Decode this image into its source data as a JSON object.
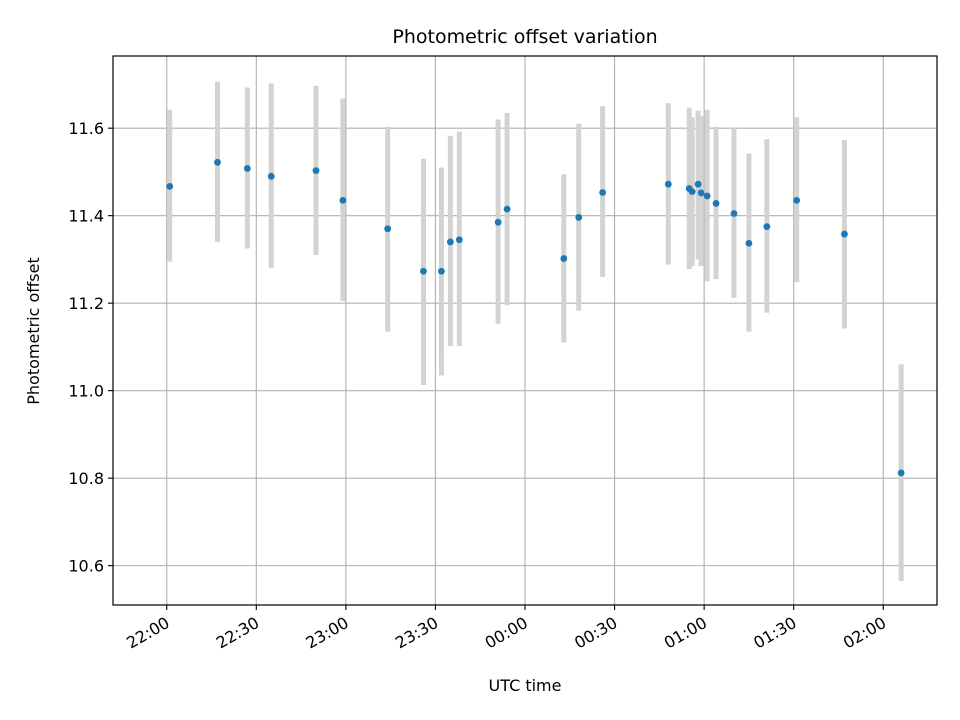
{
  "chart_data": {
    "type": "scatter",
    "title": "Photometric offset variation",
    "xlabel": "UTC time",
    "ylabel": "Photometric offset",
    "x_is_time": true,
    "xlim": [
      "21:42",
      "02:18"
    ],
    "ylim": [
      10.51,
      11.765
    ],
    "x_ticks": [
      "22:00",
      "22:30",
      "23:00",
      "23:30",
      "00:00",
      "00:30",
      "01:00",
      "01:30",
      "02:00"
    ],
    "y_ticks": [
      10.6,
      10.8,
      11.0,
      11.2,
      11.4,
      11.6
    ],
    "y_tick_labels": [
      "10.6",
      "10.8",
      "11.0",
      "11.2",
      "11.4",
      "11.6"
    ],
    "grid": true,
    "colors": {
      "point": "#1f77b4",
      "errorbar": "#d3d3d3",
      "grid": "#b0b0b0"
    },
    "points": [
      {
        "x": "22:01",
        "y": 11.467,
        "lo": 11.295,
        "hi": 11.642
      },
      {
        "x": "22:17",
        "y": 11.522,
        "lo": 11.34,
        "hi": 11.706
      },
      {
        "x": "22:27",
        "y": 11.508,
        "lo": 11.325,
        "hi": 11.693
      },
      {
        "x": "22:35",
        "y": 11.49,
        "lo": 11.28,
        "hi": 11.702
      },
      {
        "x": "22:50",
        "y": 11.503,
        "lo": 11.31,
        "hi": 11.697
      },
      {
        "x": "22:59",
        "y": 11.435,
        "lo": 11.205,
        "hi": 11.668
      },
      {
        "x": "23:14",
        "y": 11.37,
        "lo": 11.135,
        "hi": 11.603
      },
      {
        "x": "23:26",
        "y": 11.273,
        "lo": 11.013,
        "hi": 11.53
      },
      {
        "x": "23:32",
        "y": 11.273,
        "lo": 11.035,
        "hi": 11.51
      },
      {
        "x": "23:35",
        "y": 11.34,
        "lo": 11.102,
        "hi": 11.582
      },
      {
        "x": "23:38",
        "y": 11.345,
        "lo": 11.102,
        "hi": 11.592
      },
      {
        "x": "23:51",
        "y": 11.385,
        "lo": 11.153,
        "hi": 11.62
      },
      {
        "x": "23:54",
        "y": 11.415,
        "lo": 11.195,
        "hi": 11.635
      },
      {
        "x": "00:13",
        "y": 11.302,
        "lo": 11.11,
        "hi": 11.495
      },
      {
        "x": "00:18",
        "y": 11.396,
        "lo": 11.183,
        "hi": 11.61
      },
      {
        "x": "00:26",
        "y": 11.453,
        "lo": 11.26,
        "hi": 11.65
      },
      {
        "x": "00:48",
        "y": 11.472,
        "lo": 11.288,
        "hi": 11.657
      },
      {
        "x": "00:55",
        "y": 11.462,
        "lo": 11.278,
        "hi": 11.647
      },
      {
        "x": "00:56",
        "y": 11.455,
        "lo": 11.285,
        "hi": 11.625
      },
      {
        "x": "00:58",
        "y": 11.472,
        "lo": 11.3,
        "hi": 11.64
      },
      {
        "x": "00:59",
        "y": 11.452,
        "lo": 11.285,
        "hi": 11.627
      },
      {
        "x": "01:01",
        "y": 11.445,
        "lo": 11.25,
        "hi": 11.642
      },
      {
        "x": "01:04",
        "y": 11.428,
        "lo": 11.255,
        "hi": 11.603
      },
      {
        "x": "01:10",
        "y": 11.405,
        "lo": 11.212,
        "hi": 11.6
      },
      {
        "x": "01:15",
        "y": 11.337,
        "lo": 11.135,
        "hi": 11.542
      },
      {
        "x": "01:21",
        "y": 11.375,
        "lo": 11.178,
        "hi": 11.575
      },
      {
        "x": "01:31",
        "y": 11.435,
        "lo": 11.248,
        "hi": 11.625
      },
      {
        "x": "01:47",
        "y": 11.358,
        "lo": 11.142,
        "hi": 11.573
      },
      {
        "x": "02:06",
        "y": 10.812,
        "lo": 10.565,
        "hi": 11.06
      }
    ]
  }
}
